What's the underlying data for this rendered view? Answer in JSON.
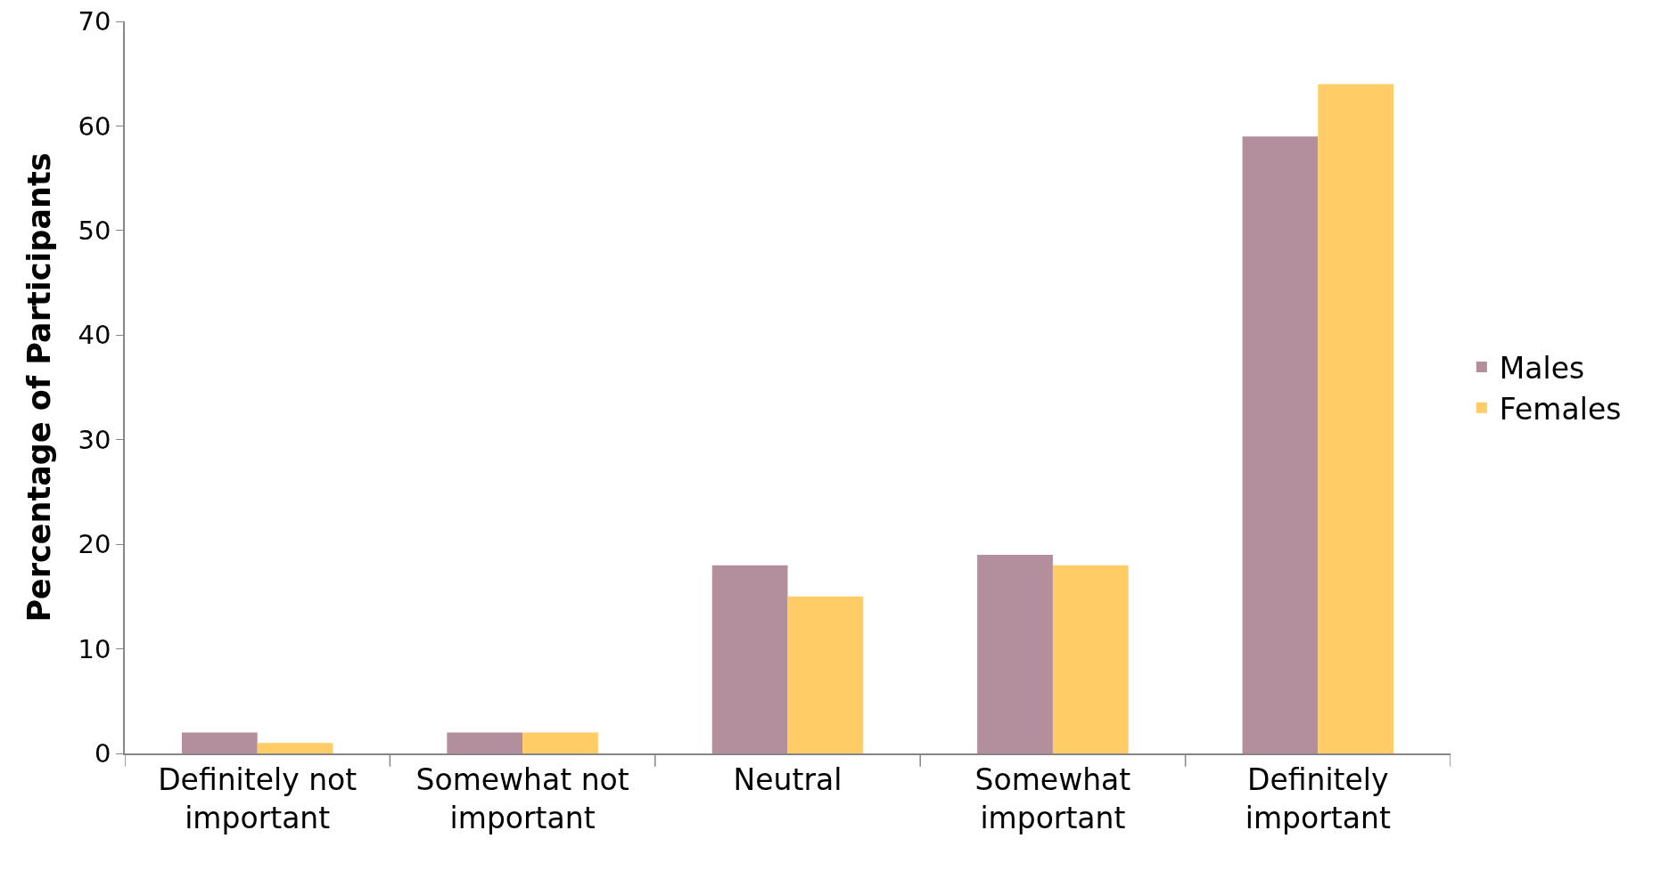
{
  "chart_data": {
    "type": "bar",
    "ylabel": "Percentage of Participants",
    "categories": [
      "Definitely not important",
      "Somewhat not important",
      "Neutral",
      "Somewhat important",
      "Definitely important"
    ],
    "series": [
      {
        "name": "Males",
        "color": "#b38e9c",
        "values": [
          2,
          2,
          18,
          19,
          59
        ]
      },
      {
        "name": "Females",
        "color": "#ffcc66",
        "values": [
          1,
          2,
          15,
          18,
          64
        ]
      }
    ],
    "ylim": [
      0,
      70
    ],
    "yticks": [
      0,
      10,
      20,
      30,
      40,
      50,
      60,
      70
    ],
    "grid": false,
    "legend": "right"
  }
}
